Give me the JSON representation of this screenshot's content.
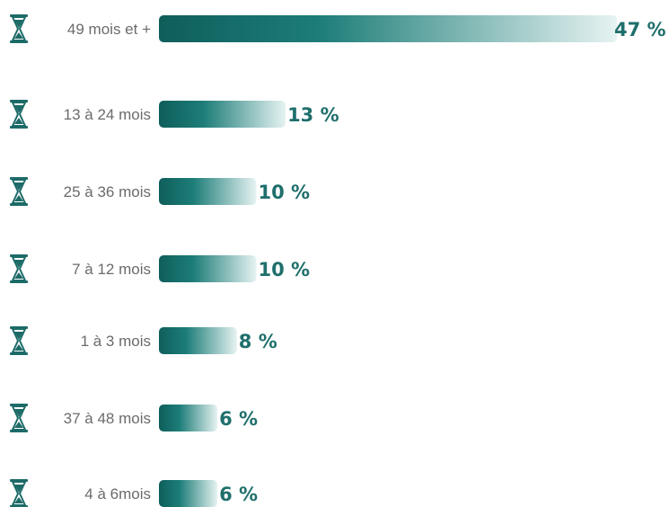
{
  "chart_data": {
    "type": "bar",
    "orientation": "horizontal",
    "categories": [
      "49 mois et +",
      "13 à 24 mois",
      "25 à 36 mois",
      "7 à 12 mois",
      "1 à 3 mois",
      "37 à 48 mois",
      "4 à 6mois"
    ],
    "values": [
      47,
      13,
      10,
      10,
      8,
      6,
      6
    ],
    "value_labels": [
      "47 %",
      "13 %",
      "10 %",
      "10 %",
      "8 %",
      "6 %",
      "6 %"
    ],
    "category_icon": "hourglass-icon",
    "colors": {
      "bar_dark": "#0f5e5b",
      "bar_mid": "#1d7d78",
      "bar_light": "#e6f3f2",
      "value_text": "#1f6f6c",
      "label_text": "#6b6b6b",
      "icon": "#1d6b68"
    },
    "xlim": [
      0,
      47
    ],
    "grid": false,
    "legend": "none"
  }
}
